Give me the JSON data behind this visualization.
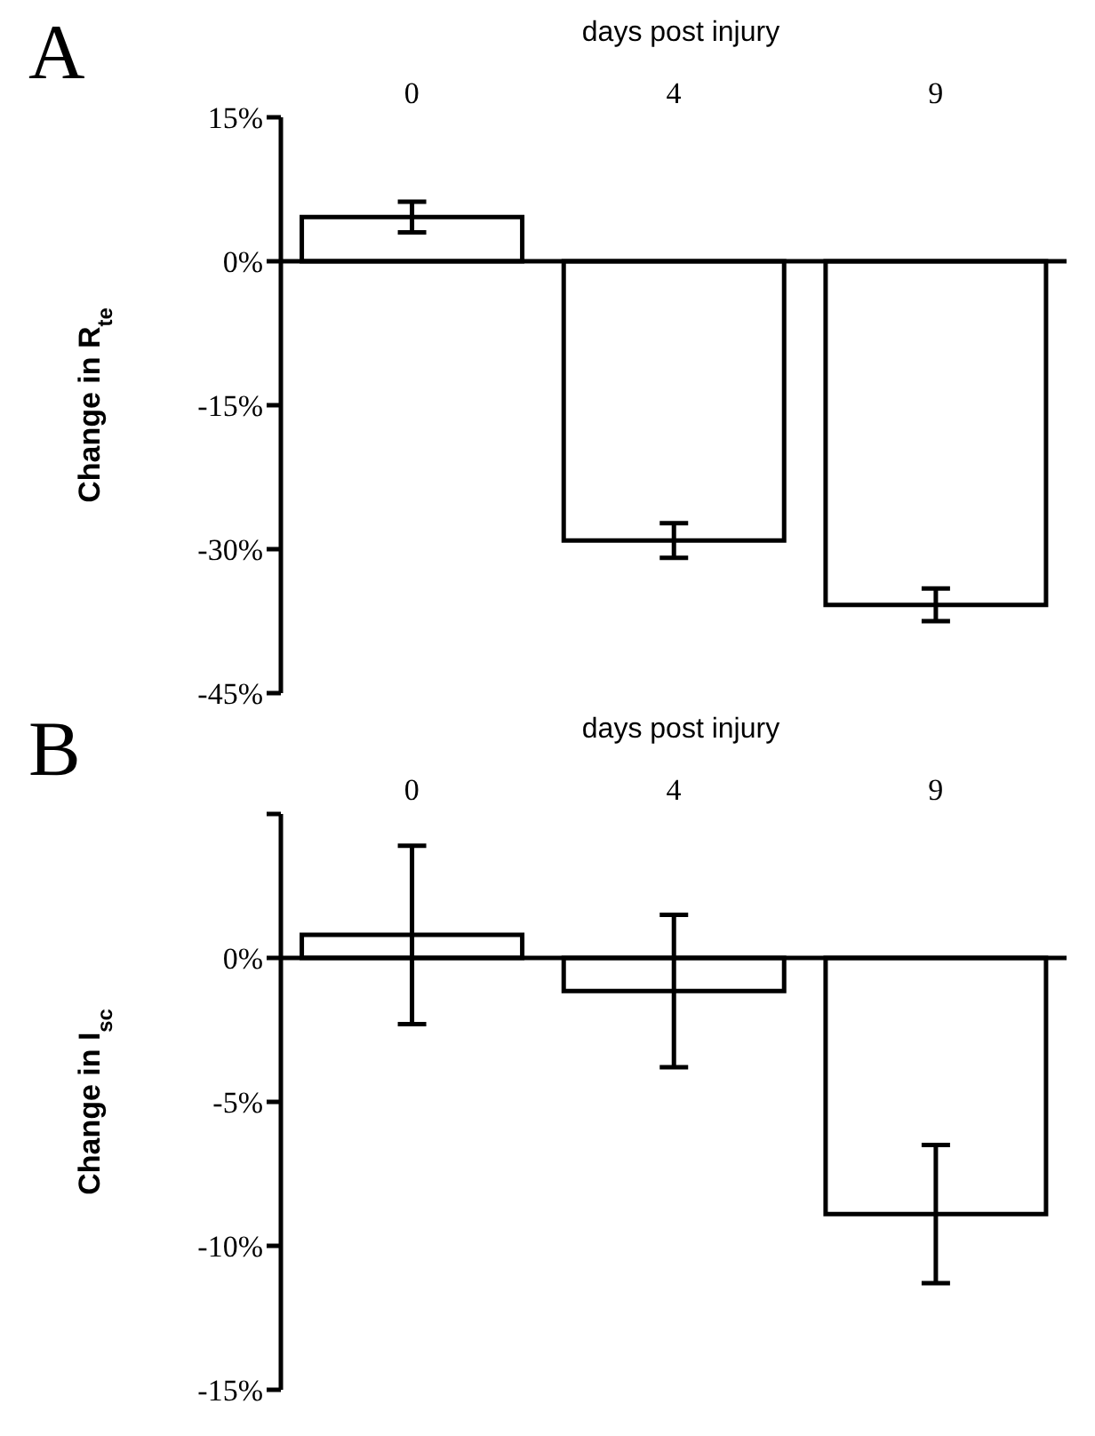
{
  "chart_data": [
    {
      "type": "bar",
      "title": "A",
      "xlabel": "days post injury",
      "ylabel": "Change in R$_{te}$",
      "categories": [
        "0",
        "4",
        "9"
      ],
      "series": [
        {
          "color": "#000000",
          "values": [
            4.6,
            -29.1,
            -35.8
          ],
          "errors": [
            1.6,
            1.8,
            1.7
          ]
        }
      ],
      "ylim": [
        -45,
        15
      ],
      "yticks": [
        {
          "value": -45,
          "label": "-45%"
        },
        {
          "value": -30,
          "label": "-30%"
        },
        {
          "value": -15,
          "label": "-15%"
        },
        {
          "value": 0,
          "label": "0%"
        },
        {
          "value": 15,
          "label": "15%"
        }
      ],
      "ref_lines": [
        {
          "axis": "y",
          "value": 0,
          "color": "#000000"
        }
      ],
      "grid": false,
      "legend": false
    },
    {
      "type": "bar",
      "title": "B",
      "xlabel": "days post injury",
      "ylabel": "Change in I$_{sc}$",
      "categories": [
        "0",
        "4",
        "9"
      ],
      "series": [
        {
          "color": "#000000",
          "values": [
            0.8,
            -1.15,
            -8.9
          ],
          "errors": [
            3.1,
            2.65,
            2.4
          ]
        }
      ],
      "ylim": [
        -15,
        5
      ],
      "yticks": [
        {
          "value": -15,
          "label": "-15%"
        },
        {
          "value": -10,
          "label": "-10%"
        },
        {
          "value": -5,
          "label": "-5%"
        },
        {
          "value": 0,
          "label": "0%"
        },
        {
          "value": 5,
          "label": null
        }
      ],
      "ref_lines": [
        {
          "axis": "y",
          "value": 0,
          "color": "#000000"
        }
      ],
      "grid": false,
      "legend": false
    }
  ]
}
